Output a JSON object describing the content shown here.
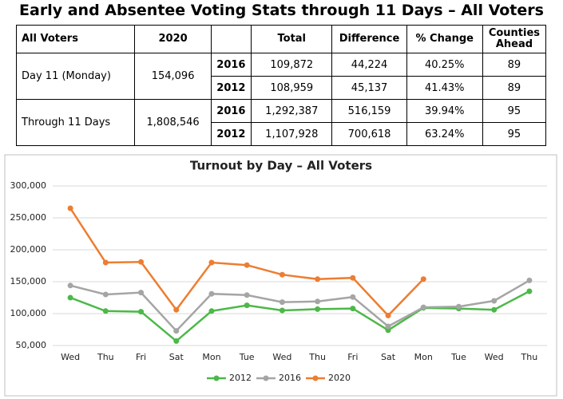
{
  "title": "Early and Absentee Voting Stats through 11 Days – All Voters",
  "table": {
    "headers": [
      "All Voters",
      "2020",
      "Total",
      "Difference",
      "% Change",
      "Counties Ahead"
    ],
    "groups": [
      {
        "label": "Day 11 (Monday)",
        "value": "154,096",
        "rows": [
          [
            "2016",
            "109,872",
            "44,224",
            "40.25%",
            "89"
          ],
          [
            "2012",
            "108,959",
            "45,137",
            "41.43%",
            "89"
          ]
        ]
      },
      {
        "label": "Through 11 Days",
        "value": "1,808,546",
        "rows": [
          [
            "2016",
            "1,292,387",
            "516,159",
            "39.94%",
            "95"
          ],
          [
            "2012",
            "1,107,928",
            "700,618",
            "63.24%",
            "95"
          ]
        ]
      }
    ]
  },
  "chart_data": {
    "type": "line",
    "title": "Turnout by Day – All Voters",
    "categories": [
      "Wed",
      "Thu",
      "Fri",
      "Sat",
      "Mon",
      "Tue",
      "Wed",
      "Thu",
      "Fri",
      "Sat",
      "Mon",
      "Tue",
      "Wed",
      "Thu"
    ],
    "series": [
      {
        "name": "2012",
        "color": "#4cb848",
        "values": [
          125000,
          104000,
          103000,
          57000,
          104000,
          113000,
          105000,
          107000,
          108000,
          74000,
          108959,
          108000,
          106000,
          135000
        ]
      },
      {
        "name": "2016",
        "color": "#a5a5a5",
        "values": [
          144000,
          130000,
          133000,
          73000,
          131000,
          129000,
          118000,
          119000,
          126000,
          80000,
          109872,
          111000,
          120000,
          152000
        ]
      },
      {
        "name": "2020",
        "color": "#ed7d31",
        "values": [
          265000,
          180000,
          181000,
          106000,
          180000,
          176000,
          161000,
          154000,
          156000,
          97000,
          154096,
          null,
          null,
          null
        ]
      }
    ],
    "ylim": [
      50000,
      300000
    ],
    "yticks": [
      {
        "value": 50000,
        "label": "50,000"
      },
      {
        "value": 100000,
        "label": "100,000"
      },
      {
        "value": 150000,
        "label": "150,000"
      },
      {
        "value": 200000,
        "label": "200,000"
      },
      {
        "value": 250000,
        "label": "250,000"
      },
      {
        "value": 300000,
        "label": "300,000"
      }
    ],
    "grid": true,
    "legend": "bottom"
  }
}
